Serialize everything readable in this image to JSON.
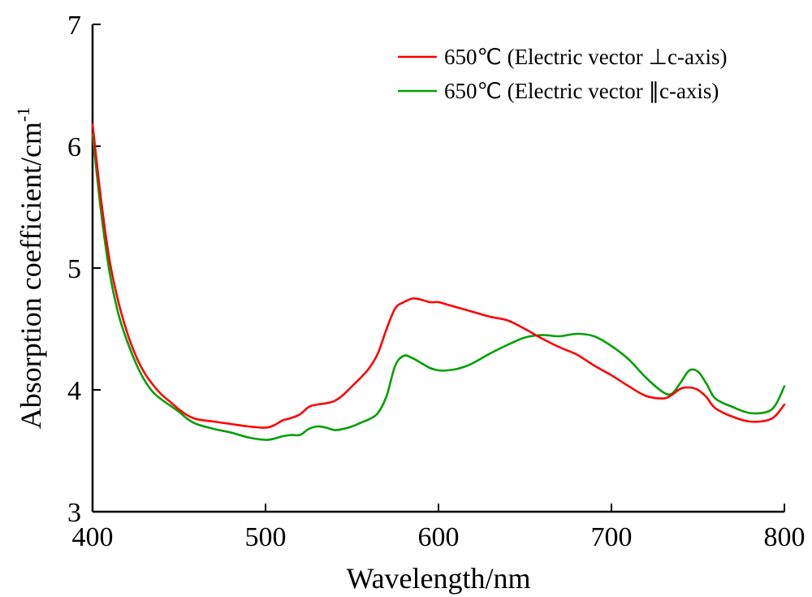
{
  "chart_data": {
    "type": "line",
    "xlabel": "Wavelength/nm",
    "ylabel": "Absorption coefficient/cm",
    "ylabel_superscript": "-1",
    "xlim": [
      400,
      800
    ],
    "ylim": [
      3,
      7
    ],
    "xticks": [
      "400",
      "500",
      "600",
      "700",
      "800"
    ],
    "yticks": [
      "3",
      "4",
      "5",
      "6",
      "7"
    ],
    "grid": false,
    "legend_position": "top-right",
    "series": [
      {
        "name": "650℃ (Electric vector ⊥c-axis)",
        "color": "#ff0000",
        "x": [
          400,
          405,
          410,
          415,
          420,
          425,
          430,
          435,
          440,
          445,
          450,
          455,
          460,
          470,
          480,
          490,
          500,
          505,
          510,
          515,
          520,
          525,
          530,
          535,
          540,
          545,
          550,
          555,
          560,
          565,
          570,
          575,
          580,
          585,
          590,
          595,
          600,
          605,
          610,
          615,
          620,
          630,
          640,
          650,
          660,
          670,
          680,
          690,
          700,
          710,
          720,
          730,
          735,
          740,
          745,
          750,
          755,
          760,
          770,
          780,
          790,
          795,
          800
        ],
        "y": [
          6.18,
          5.55,
          5.05,
          4.72,
          4.47,
          4.28,
          4.14,
          4.04,
          3.96,
          3.9,
          3.84,
          3.79,
          3.76,
          3.74,
          3.72,
          3.7,
          3.69,
          3.71,
          3.75,
          3.77,
          3.8,
          3.86,
          3.88,
          3.89,
          3.91,
          3.96,
          4.03,
          4.1,
          4.18,
          4.3,
          4.5,
          4.67,
          4.72,
          4.75,
          4.74,
          4.72,
          4.72,
          4.7,
          4.68,
          4.66,
          4.64,
          4.6,
          4.57,
          4.5,
          4.42,
          4.35,
          4.29,
          4.2,
          4.12,
          4.03,
          3.95,
          3.93,
          3.96,
          4.01,
          4.02,
          4.0,
          3.94,
          3.85,
          3.78,
          3.74,
          3.75,
          3.79,
          3.88
        ]
      },
      {
        "name": "650℃ (Electric vector ∥c-axis)",
        "color": "#00a000",
        "x": [
          400,
          405,
          410,
          415,
          420,
          425,
          430,
          435,
          440,
          445,
          450,
          455,
          460,
          470,
          480,
          490,
          500,
          505,
          510,
          515,
          520,
          525,
          530,
          535,
          540,
          545,
          550,
          555,
          560,
          565,
          570,
          575,
          580,
          585,
          590,
          595,
          600,
          605,
          610,
          615,
          620,
          630,
          640,
          650,
          660,
          670,
          680,
          690,
          700,
          710,
          720,
          730,
          735,
          740,
          745,
          750,
          755,
          760,
          770,
          780,
          790,
          795,
          800
        ],
        "y": [
          6.1,
          5.45,
          4.95,
          4.62,
          4.4,
          4.22,
          4.08,
          3.98,
          3.92,
          3.87,
          3.82,
          3.76,
          3.72,
          3.68,
          3.65,
          3.61,
          3.59,
          3.6,
          3.62,
          3.63,
          3.63,
          3.68,
          3.7,
          3.69,
          3.67,
          3.68,
          3.7,
          3.73,
          3.76,
          3.81,
          3.95,
          4.2,
          4.28,
          4.26,
          4.22,
          4.18,
          4.16,
          4.16,
          4.17,
          4.19,
          4.22,
          4.3,
          4.37,
          4.43,
          4.45,
          4.44,
          4.46,
          4.44,
          4.36,
          4.25,
          4.1,
          3.98,
          3.97,
          4.06,
          4.16,
          4.15,
          4.05,
          3.93,
          3.86,
          3.81,
          3.82,
          3.88,
          4.03
        ]
      }
    ]
  }
}
